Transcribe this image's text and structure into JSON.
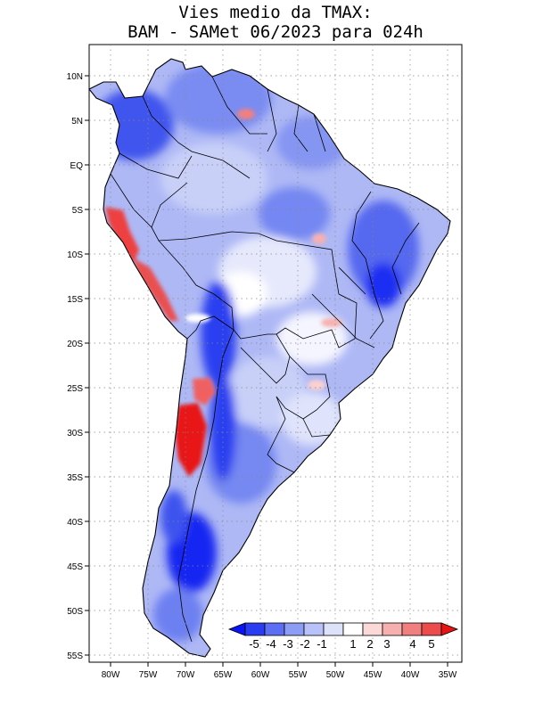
{
  "title_line1": "Vies medio da TMAX:",
  "title_line2": "BAM - SAMet 06/2023  para 024h",
  "map": {
    "lat_ticks": [
      "10N",
      "5N",
      "EQ",
      "5S",
      "10S",
      "15S",
      "20S",
      "25S",
      "30S",
      "35S",
      "40S",
      "45S",
      "50S",
      "55S"
    ],
    "lon_ticks": [
      "80W",
      "75W",
      "70W",
      "65W",
      "60W",
      "55W",
      "50W",
      "45W",
      "40W",
      "35W"
    ],
    "grid": "dotted",
    "region": "South America"
  },
  "colorbar": {
    "labels": [
      "-5",
      "-4",
      "-3",
      "-2",
      "-1",
      "1",
      "2",
      "3",
      "4",
      "5"
    ],
    "colors": [
      "#0a14f5",
      "#2a3cf2",
      "#5b6ef4",
      "#8d9cf5",
      "#b8c2f8",
      "#dde2fb",
      "#ffffff",
      "#fbd9d9",
      "#f6b0b0",
      "#f08080",
      "#ec4c4c",
      "#e81414"
    ]
  }
}
